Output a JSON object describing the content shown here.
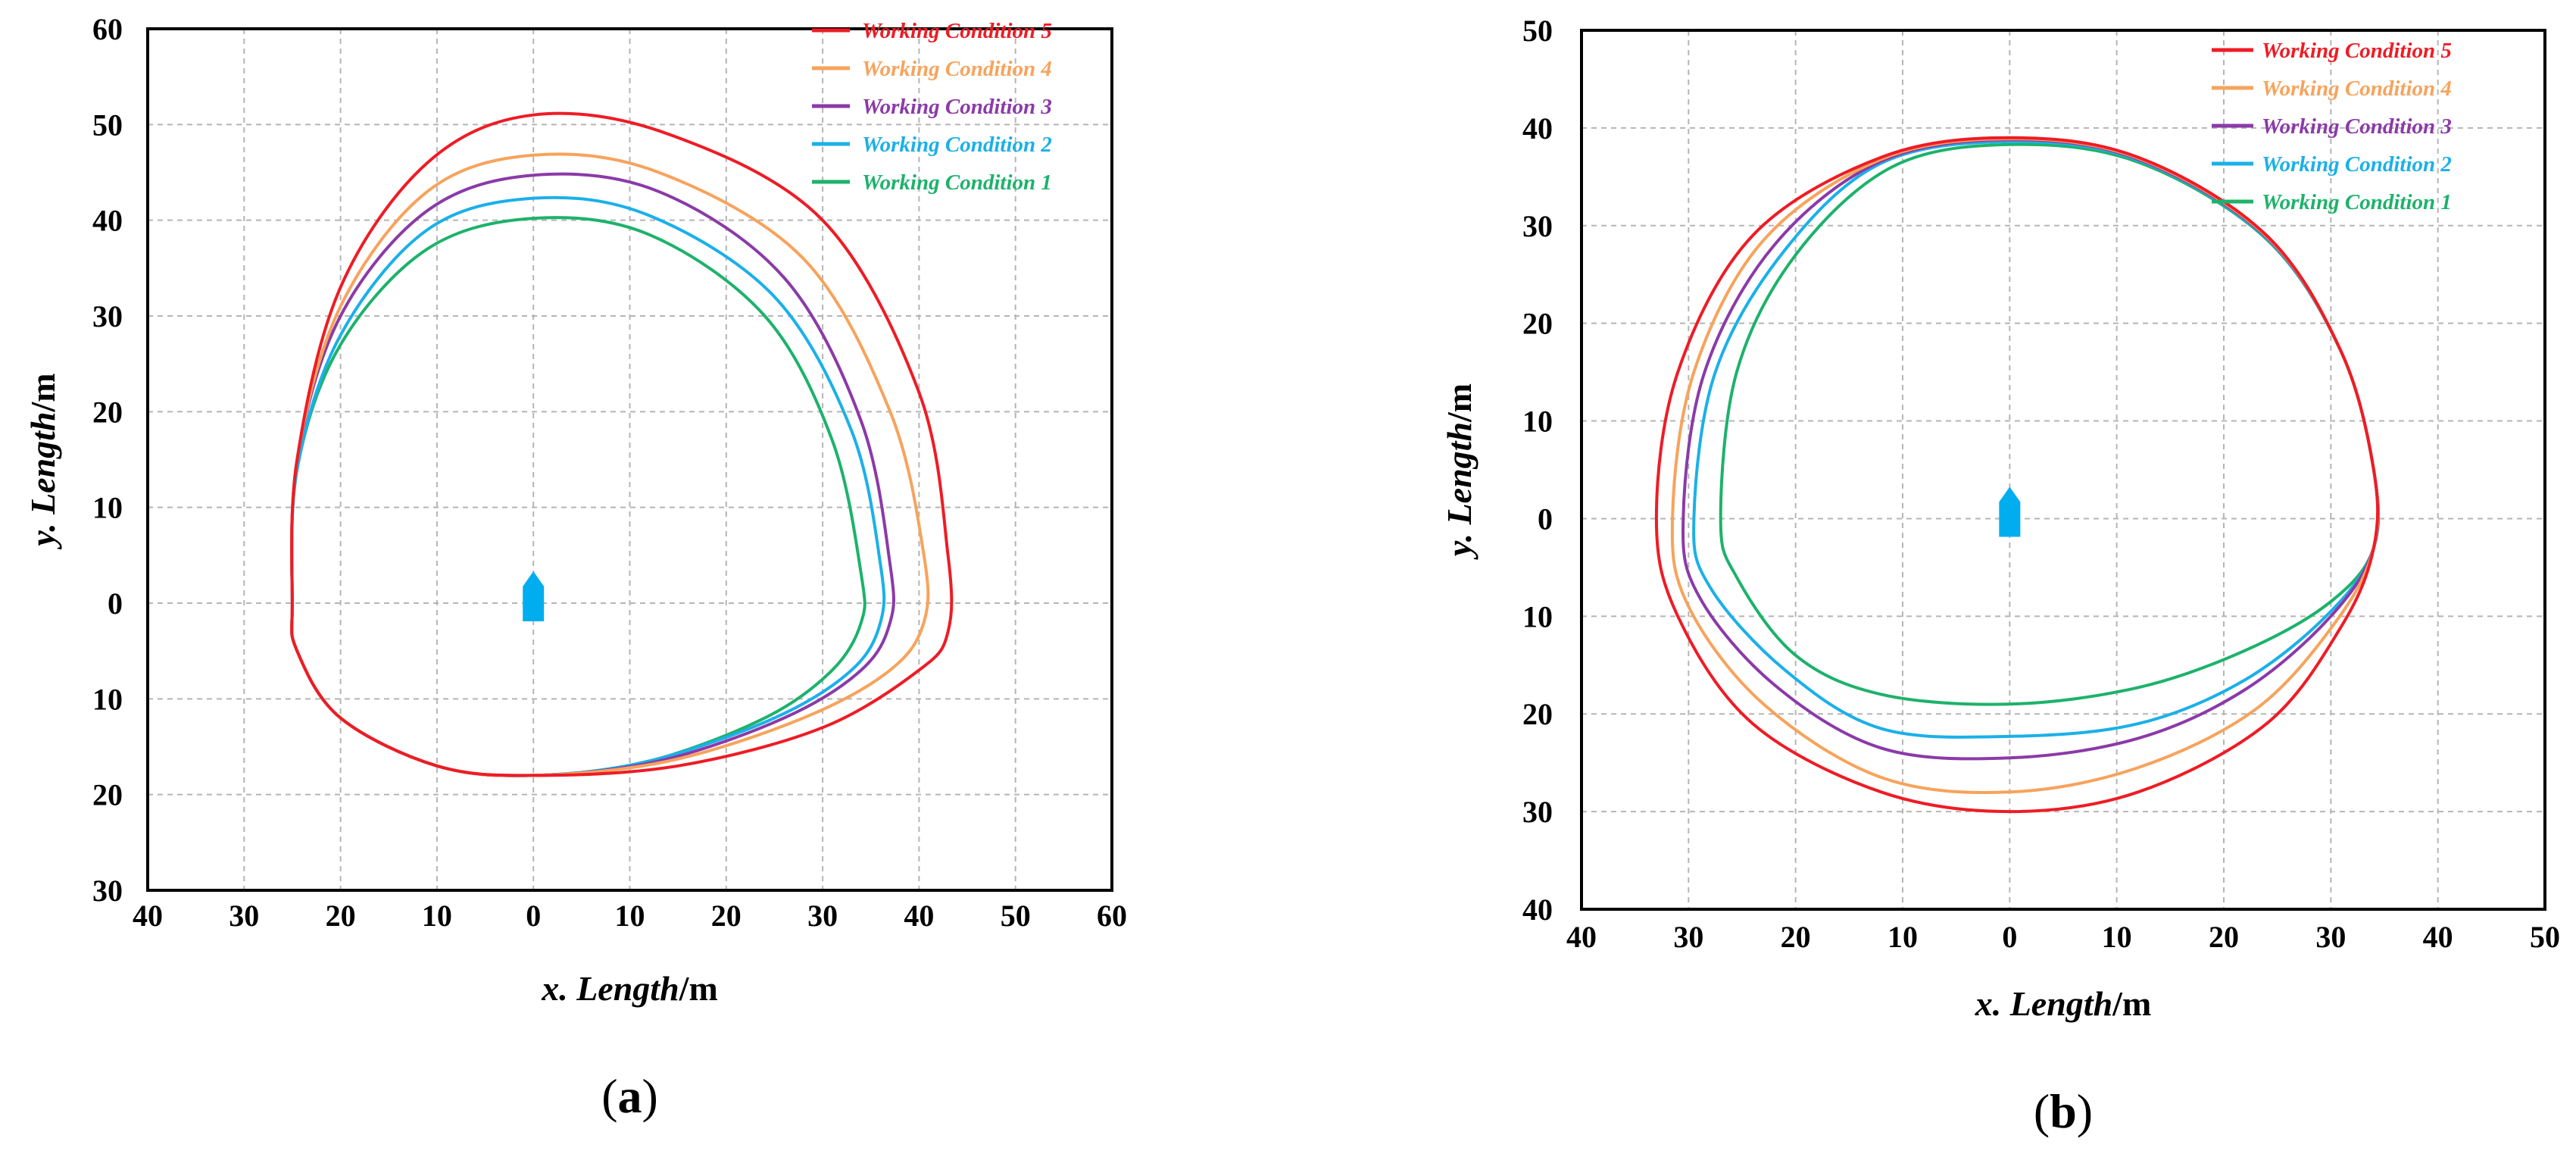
{
  "chart_data": [
    {
      "type": "line",
      "panel_label": "a",
      "xlabel": "x. Length",
      "xunit": "/m",
      "ylabel": "y. Length",
      "yunit": "/m",
      "xlim": [
        -40,
        60
      ],
      "ylim": [
        -30,
        60
      ],
      "grid": true,
      "legend": "top-right",
      "x_ticks": [
        -40,
        -30,
        -20,
        -10,
        0,
        10,
        20,
        30,
        40,
        50,
        60
      ],
      "x_tick_labels": [
        "40",
        "30",
        "20",
        "10",
        "0",
        "10",
        "20",
        "30",
        "40",
        "50",
        "60"
      ],
      "y_ticks": [
        60,
        50,
        40,
        30,
        20,
        10,
        0,
        -10,
        -20,
        -30
      ],
      "y_tick_labels": [
        "60",
        "50",
        "40",
        "30",
        "20",
        "10",
        "0",
        "10",
        "20",
        "30"
      ],
      "series": [
        {
          "name": "Working Condition 5",
          "color": "#ee1c25",
          "points": [
            [
              -25,
              0
            ],
            [
              -24.5,
              15
            ],
            [
              -20,
              33
            ],
            [
              -11,
              46
            ],
            [
              0,
              51
            ],
            [
              14,
              49
            ],
            [
              30,
              40
            ],
            [
              40,
              22
            ],
            [
              43,
              5
            ],
            [
              43,
              -3
            ],
            [
              40,
              -7
            ],
            [
              30,
              -13
            ],
            [
              15,
              -17
            ],
            [
              0,
              -18
            ],
            [
              -10,
              -17
            ],
            [
              -20,
              -12
            ],
            [
              -24.5,
              -5
            ]
          ]
        },
        {
          "name": "Working Condition 4",
          "color": "#f7a35c",
          "points": [
            [
              -25,
              0
            ],
            [
              -24.5,
              15
            ],
            [
              -20,
              31
            ],
            [
              -11,
              43
            ],
            [
              0,
              46.8
            ],
            [
              13,
              45
            ],
            [
              28,
              36
            ],
            [
              37,
              20
            ],
            [
              40.5,
              5
            ],
            [
              40.5,
              -2
            ],
            [
              37,
              -7
            ],
            [
              28,
              -12
            ],
            [
              14,
              -16.5
            ],
            [
              0,
              -18
            ],
            [
              -10,
              -17
            ],
            [
              -20,
              -12
            ],
            [
              -24.5,
              -5
            ]
          ]
        },
        {
          "name": "Working Condition 3",
          "color": "#8b3aa8",
          "points": [
            [
              -25,
              0
            ],
            [
              -24.5,
              15
            ],
            [
              -20,
              30
            ],
            [
              -11,
              41
            ],
            [
              0,
              44.7
            ],
            [
              13,
              43
            ],
            [
              26,
              34
            ],
            [
              34,
              19
            ],
            [
              37,
              4
            ],
            [
              37,
              -2
            ],
            [
              34,
              -7
            ],
            [
              26,
              -12
            ],
            [
              13,
              -16.5
            ],
            [
              0,
              -18
            ],
            [
              -10,
              -17
            ],
            [
              -20,
              -12
            ],
            [
              -24.5,
              -5
            ]
          ]
        },
        {
          "name": "Working Condition 2",
          "color": "#1bb0e8",
          "points": [
            [
              -25,
              0
            ],
            [
              -24.5,
              14
            ],
            [
              -20,
              28
            ],
            [
              -11,
              39
            ],
            [
              0,
              42.3
            ],
            [
              12,
              40.5
            ],
            [
              25,
              32
            ],
            [
              33,
              18
            ],
            [
              36,
              4
            ],
            [
              36,
              -2
            ],
            [
              33,
              -7
            ],
            [
              25,
              -12
            ],
            [
              12,
              -16.5
            ],
            [
              0,
              -18
            ],
            [
              -10,
              -17
            ],
            [
              -20,
              -12
            ],
            [
              -24.5,
              -5
            ]
          ]
        },
        {
          "name": "Working Condition 1",
          "color": "#1db26b",
          "points": [
            [
              -25,
              0
            ],
            [
              -24.5,
              14
            ],
            [
              -20,
              27
            ],
            [
              -11,
              37
            ],
            [
              0,
              40.2
            ],
            [
              12,
              38.5
            ],
            [
              24,
              30
            ],
            [
              31,
              17
            ],
            [
              34,
              3
            ],
            [
              34,
              -2
            ],
            [
              31,
              -7
            ],
            [
              24,
              -12
            ],
            [
              12,
              -16.5
            ],
            [
              0,
              -18
            ],
            [
              -10,
              -17
            ],
            [
              -20,
              -12
            ],
            [
              -24.5,
              -5
            ]
          ]
        }
      ]
    },
    {
      "type": "line",
      "panel_label": "b",
      "xlabel": "x. Length",
      "xunit": "/m",
      "ylabel": "y. Length",
      "yunit": "/m",
      "xlim": [
        -40,
        50
      ],
      "ylim": [
        -40,
        50
      ],
      "grid": true,
      "legend": "top-right",
      "x_ticks": [
        -40,
        -30,
        -20,
        -10,
        0,
        10,
        20,
        30,
        40,
        50
      ],
      "x_tick_labels": [
        "40",
        "30",
        "20",
        "10",
        "0",
        "10",
        "20",
        "30",
        "40",
        "50"
      ],
      "y_ticks": [
        50,
        40,
        30,
        20,
        10,
        0,
        -10,
        -20,
        -30,
        -40
      ],
      "y_tick_labels": [
        "50",
        "40",
        "30",
        "20",
        "10",
        "0",
        "10",
        "20",
        "30",
        "40"
      ],
      "series": [
        {
          "name": "Working Condition 5",
          "color": "#ee1c25",
          "points": [
            [
              -33,
              0
            ],
            [
              -31,
              15
            ],
            [
              -24,
              29
            ],
            [
              -12,
              37
            ],
            [
              0,
              39
            ],
            [
              12,
              37
            ],
            [
              24,
              29
            ],
            [
              31,
              17
            ],
            [
              34,
              5
            ],
            [
              34,
              -3
            ],
            [
              31,
              -11
            ],
            [
              24,
              -21
            ],
            [
              12,
              -28
            ],
            [
              0,
              -30
            ],
            [
              -12,
              -28
            ],
            [
              -24,
              -21
            ],
            [
              -31,
              -10
            ]
          ]
        },
        {
          "name": "Working Condition 4",
          "color": "#f7a35c",
          "points": [
            [
              -31.5,
              0
            ],
            [
              -29.5,
              15
            ],
            [
              -23,
              28.5
            ],
            [
              -12,
              36.8
            ],
            [
              0,
              38.9
            ],
            [
              12,
              36.9
            ],
            [
              24,
              28.9
            ],
            [
              31,
              17
            ],
            [
              34,
              5
            ],
            [
              34,
              -3
            ],
            [
              30.5,
              -10.5
            ],
            [
              23,
              -19.5
            ],
            [
              12,
              -25.5
            ],
            [
              0,
              -28
            ],
            [
              -12,
              -26.5
            ],
            [
              -23,
              -19
            ],
            [
              -30,
              -9
            ]
          ]
        },
        {
          "name": "Working Condition 3",
          "color": "#8b3aa8",
          "points": [
            [
              -30.5,
              0
            ],
            [
              -28.5,
              15
            ],
            [
              -22,
              28
            ],
            [
              -12,
              36.6
            ],
            [
              0,
              38.8
            ],
            [
              12,
              36.8
            ],
            [
              24,
              28.8
            ],
            [
              31,
              17
            ],
            [
              34,
              5
            ],
            [
              34,
              -3
            ],
            [
              30,
              -10
            ],
            [
              22,
              -17.5
            ],
            [
              12,
              -22.5
            ],
            [
              0,
              -24.5
            ],
            [
              -12,
              -23.5
            ],
            [
              -22,
              -17
            ],
            [
              -29,
              -8
            ]
          ]
        },
        {
          "name": "Working Condition 2",
          "color": "#1bb0e8",
          "points": [
            [
              -29.5,
              0
            ],
            [
              -27.5,
              15
            ],
            [
              -21,
              27.5
            ],
            [
              -12,
              36.4
            ],
            [
              0,
              38.6
            ],
            [
              12,
              36.7
            ],
            [
              24,
              28.7
            ],
            [
              31,
              17
            ],
            [
              34,
              5
            ],
            [
              34,
              -3
            ],
            [
              30,
              -9.5
            ],
            [
              22,
              -16.5
            ],
            [
              12,
              -21
            ],
            [
              0,
              -22.3
            ],
            [
              -12,
              -21.5
            ],
            [
              -21,
              -15.5
            ],
            [
              -28,
              -7
            ]
          ]
        },
        {
          "name": "Working Condition 1",
          "color": "#1db26b",
          "points": [
            [
              -27,
              0
            ],
            [
              -25.5,
              15
            ],
            [
              -20,
              27
            ],
            [
              -11,
              36
            ],
            [
              0,
              38.3
            ],
            [
              12,
              36.5
            ],
            [
              24,
              28.6
            ],
            [
              31,
              17
            ],
            [
              34,
              5
            ],
            [
              34,
              -3
            ],
            [
              30,
              -8.5
            ],
            [
              22,
              -13.5
            ],
            [
              12,
              -17.3
            ],
            [
              0,
              -19
            ],
            [
              -12,
              -18
            ],
            [
              -20,
              -14
            ],
            [
              -25.5,
              -6
            ]
          ]
        }
      ]
    }
  ]
}
